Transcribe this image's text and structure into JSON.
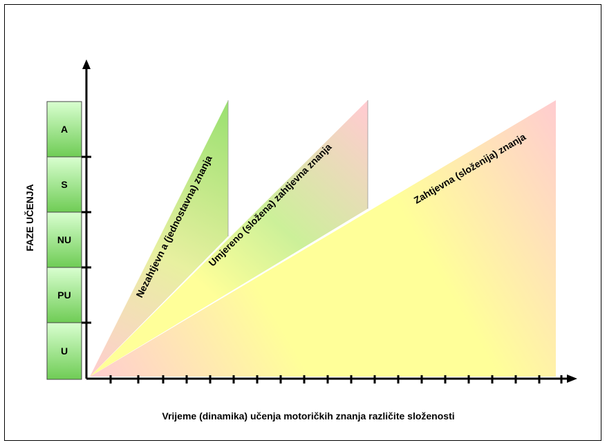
{
  "y_axis_title": "FAZE UČENJA",
  "x_axis_title": "Vrijeme (dinamika) učenja motoričkih znanja različite složenosti",
  "phases": [
    {
      "label": "A"
    },
    {
      "label": "S"
    },
    {
      "label": "NU"
    },
    {
      "label": "PU"
    },
    {
      "label": "U"
    }
  ],
  "triangles": [
    {
      "label": "Nezahtjevn a (jednostavna) znanja"
    },
    {
      "label": "Umjereno (složena) zahtjevna znanja"
    },
    {
      "label": "Zahtjevna (složenija) znanja"
    }
  ],
  "colors": {
    "phase_box_top": "#ccffcc",
    "phase_box_bottom": "#66cc66",
    "green": "#99dd66",
    "yellow": "#ffff99",
    "pink": "#ffcccc",
    "axis": "#000000"
  }
}
